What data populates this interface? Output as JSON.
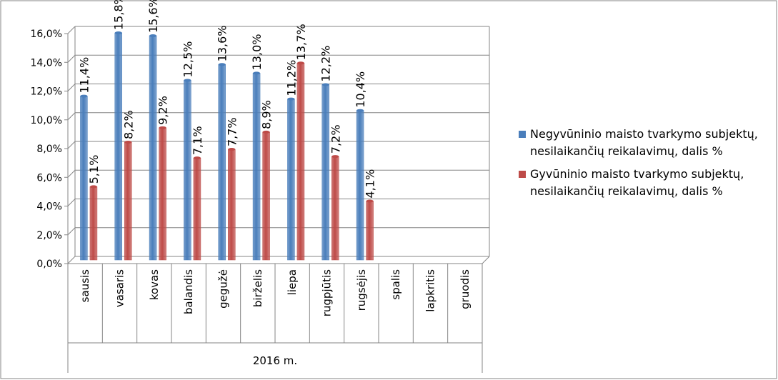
{
  "chart_data": {
    "type": "bar",
    "categories": [
      "sausis",
      "vasaris",
      "kovas",
      "balandis",
      "gegužė",
      "birželis",
      "liepa",
      "rugpjūtis",
      "rugsėjis",
      "spalis",
      "lapkritis",
      "gruodis"
    ],
    "group_label": "2016 m.",
    "series": [
      {
        "name": "Negyvūninio maisto tvarkymo subjektų, nesilaikančių reikalavimų, dalis %",
        "color": "#4a7ebb",
        "values": [
          11.4,
          15.8,
          15.6,
          12.5,
          13.6,
          13.0,
          11.2,
          12.2,
          10.4,
          null,
          null,
          null
        ],
        "value_labels": [
          "11,4%",
          "15,8%",
          "15,6%",
          "12,5%",
          "13,6%",
          "13,0%",
          "11,2%",
          "12,2%",
          "10,4%",
          null,
          null,
          null
        ]
      },
      {
        "name": "Gyvūninio maisto tvarkymo subjektų, nesilaikančių reikalavimų, dalis %",
        "color": "#be4b48",
        "values": [
          5.1,
          8.2,
          9.2,
          7.1,
          7.7,
          8.9,
          13.7,
          7.2,
          4.1,
          null,
          null,
          null
        ],
        "value_labels": [
          "5,1%",
          "8,2%",
          "9,2%",
          "7,1%",
          "7,7%",
          "8,9%",
          "13,7%",
          "7,2%",
          "4,1%",
          null,
          null,
          null
        ]
      }
    ],
    "ylim": [
      0,
      16
    ],
    "yticks": [
      {
        "value": 0,
        "label": "0,0%"
      },
      {
        "value": 2,
        "label": "2,0%"
      },
      {
        "value": 4,
        "label": "4,0%"
      },
      {
        "value": 6,
        "label": "6,0%"
      },
      {
        "value": 8,
        "label": "8,0%"
      },
      {
        "value": 10,
        "label": "10,0%"
      },
      {
        "value": 12,
        "label": "12,0%"
      },
      {
        "value": 14,
        "label": "14,0%"
      },
      {
        "value": 16,
        "label": "16,0%"
      }
    ],
    "grid": true,
    "legend": "right"
  }
}
